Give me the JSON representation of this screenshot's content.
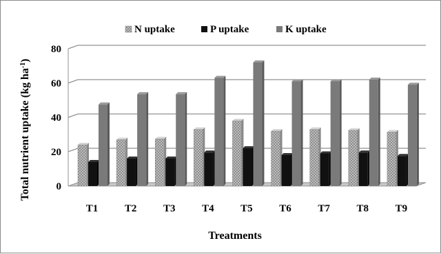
{
  "chart_data": {
    "type": "bar",
    "title": "",
    "ylabel_main": "Total nutrient uptake (kg ha",
    "ylabel_sup": "-1",
    "ylabel_close": ")",
    "xlabel": "Treatments",
    "ylim": [
      0,
      80
    ],
    "yticks": [
      0,
      20,
      40,
      60,
      80
    ],
    "grid": true,
    "legend_position": "top",
    "categories": [
      "T1",
      "T2",
      "T3",
      "T4",
      "T5",
      "T6",
      "T7",
      "T8",
      "T9"
    ],
    "series": [
      {
        "name": "N uptake",
        "values": [
          24,
          27,
          27.5,
          33,
          38,
          32,
          33,
          32.5,
          31.5
        ]
      },
      {
        "name": "P uptake",
        "values": [
          14,
          16,
          16,
          19.5,
          22,
          18,
          19,
          19.5,
          17.5
        ]
      },
      {
        "name": "K uptake",
        "values": [
          47.5,
          53.5,
          53.5,
          63,
          72,
          61,
          61,
          62,
          59
        ]
      }
    ]
  },
  "colors": {
    "n_base": "#bdbdbd",
    "n_dots": "#6d6d6d",
    "p_fill": "#111111",
    "k_fill": "#7a7a7a",
    "grid": "#909090",
    "floor": "#c8c8c8"
  }
}
